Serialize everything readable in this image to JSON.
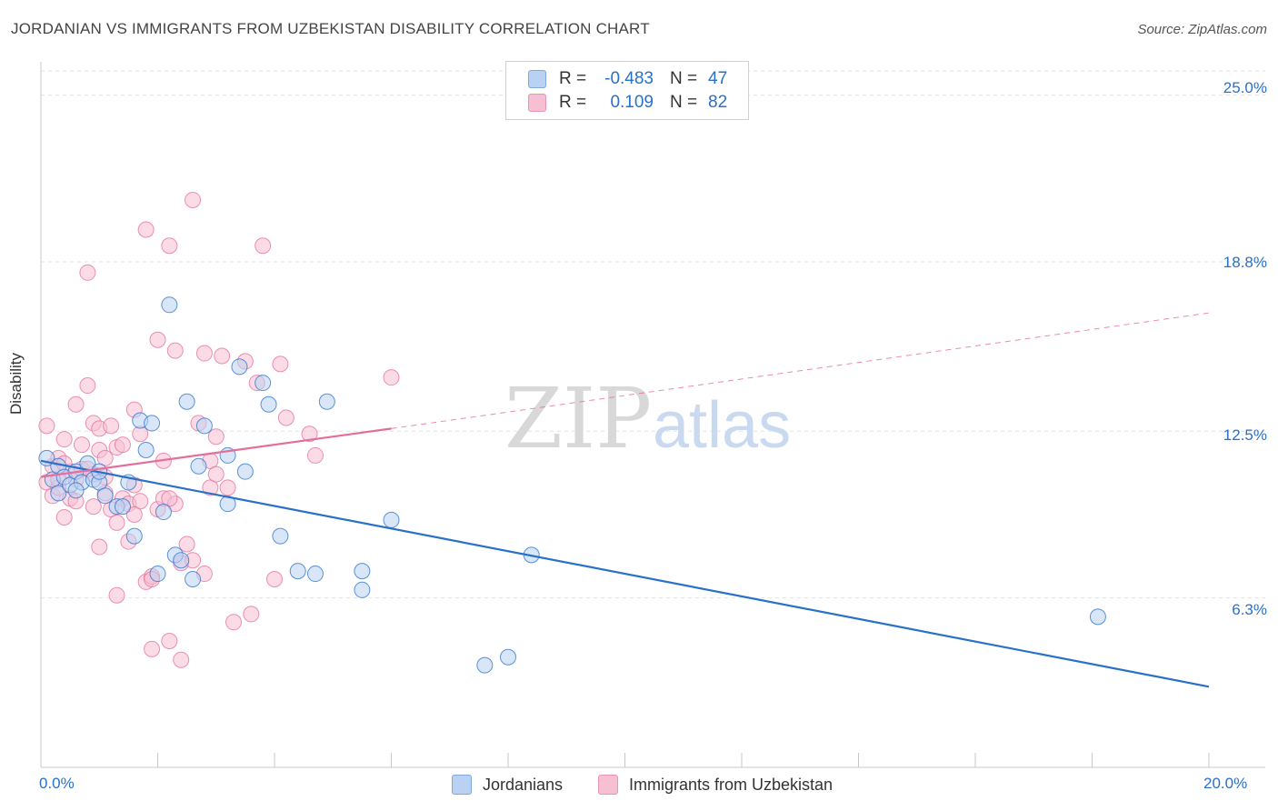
{
  "title": "JORDANIAN VS IMMIGRANTS FROM UZBEKISTAN DISABILITY CORRELATION CHART",
  "source": "Source: ZipAtlas.com",
  "watermark": {
    "zip": "ZIP",
    "atlas": "atlas"
  },
  "colors": {
    "blue": "#2970c9",
    "blue_fill": "#b9d1f2",
    "pink": "#e46e9b",
    "pink_fill": "#f7c0d2",
    "grid": "#e3e3e3"
  },
  "legend_top": {
    "rows": [
      {
        "r_label": "R =",
        "r_value": "-0.483",
        "n_label": "N =",
        "n_value": "47",
        "color": "blue"
      },
      {
        "r_label": "R =",
        "r_value": "0.109",
        "n_label": "N =",
        "n_value": "82",
        "color": "pink"
      }
    ]
  },
  "legend_bottom": {
    "items": [
      {
        "label": "Jordanians",
        "color": "blue"
      },
      {
        "label": "Immigrants from Uzbekistan",
        "color": "pink"
      }
    ]
  },
  "chart_data": {
    "type": "scatter",
    "title": "JORDANIAN VS IMMIGRANTS FROM UZBEKISTAN DISABILITY CORRELATION CHART",
    "xlabel": "",
    "ylabel": "Disability",
    "xlim": [
      0,
      20
    ],
    "ylim": [
      0,
      25.9
    ],
    "x_tick_labels": [
      {
        "value": 0,
        "label": "0.0%"
      },
      {
        "value": 20,
        "label": "20.0%"
      }
    ],
    "y_tick_labels": [
      {
        "value": 6.3,
        "label": "6.3%"
      },
      {
        "value": 12.5,
        "label": "12.5%"
      },
      {
        "value": 18.8,
        "label": "18.8%"
      },
      {
        "value": 25.0,
        "label": "25.0%"
      }
    ],
    "grid": true,
    "legend_position": "top-center",
    "series": [
      {
        "name": "Jordanians",
        "color": "blue",
        "trend": {
          "x": [
            0,
            20
          ],
          "y": [
            11.4,
            3.0
          ],
          "style": "solid"
        },
        "points": [
          [
            0.1,
            11.5
          ],
          [
            0.2,
            10.7
          ],
          [
            0.3,
            11.2
          ],
          [
            0.3,
            10.2
          ],
          [
            0.4,
            10.8
          ],
          [
            0.5,
            10.5
          ],
          [
            0.6,
            11.0
          ],
          [
            0.7,
            10.6
          ],
          [
            0.8,
            11.3
          ],
          [
            0.9,
            10.7
          ],
          [
            1.0,
            10.6
          ],
          [
            1.1,
            10.1
          ],
          [
            1.3,
            9.7
          ],
          [
            1.4,
            9.7
          ],
          [
            1.5,
            10.6
          ],
          [
            1.6,
            8.6
          ],
          [
            1.7,
            12.9
          ],
          [
            1.8,
            11.8
          ],
          [
            1.9,
            12.8
          ],
          [
            2.0,
            7.2
          ],
          [
            2.1,
            9.5
          ],
          [
            2.2,
            17.2
          ],
          [
            2.3,
            7.9
          ],
          [
            2.4,
            7.7
          ],
          [
            2.5,
            13.6
          ],
          [
            2.6,
            7.0
          ],
          [
            2.7,
            11.2
          ],
          [
            2.8,
            12.7
          ],
          [
            3.2,
            11.6
          ],
          [
            3.2,
            9.8
          ],
          [
            3.4,
            14.9
          ],
          [
            3.5,
            11.0
          ],
          [
            3.8,
            14.3
          ],
          [
            3.9,
            13.5
          ],
          [
            4.1,
            8.6
          ],
          [
            4.4,
            7.3
          ],
          [
            4.7,
            7.2
          ],
          [
            4.9,
            13.6
          ],
          [
            5.5,
            7.3
          ],
          [
            5.5,
            6.6
          ],
          [
            6.0,
            9.2
          ],
          [
            7.6,
            3.8
          ],
          [
            8.0,
            4.1
          ],
          [
            8.4,
            7.9
          ],
          [
            18.1,
            5.6
          ],
          [
            0.6,
            10.3
          ],
          [
            1.0,
            11.0
          ]
        ]
      },
      {
        "name": "Immigrants from Uzbekistan",
        "color": "pink",
        "trend": {
          "x": [
            0,
            6.0,
            20
          ],
          "y": [
            10.8,
            12.6,
            16.9
          ],
          "style": "solid-then-dashed"
        },
        "points": [
          [
            0.1,
            10.6
          ],
          [
            0.1,
            12.7
          ],
          [
            0.2,
            10.1
          ],
          [
            0.2,
            11.2
          ],
          [
            0.3,
            11.5
          ],
          [
            0.3,
            10.4
          ],
          [
            0.4,
            12.2
          ],
          [
            0.4,
            9.3
          ],
          [
            0.5,
            11.0
          ],
          [
            0.5,
            10.0
          ],
          [
            0.6,
            13.5
          ],
          [
            0.6,
            10.7
          ],
          [
            0.7,
            12.0
          ],
          [
            0.7,
            11.1
          ],
          [
            0.8,
            14.2
          ],
          [
            0.8,
            18.4
          ],
          [
            0.9,
            12.8
          ],
          [
            0.9,
            10.9
          ],
          [
            1.0,
            12.6
          ],
          [
            1.0,
            11.8
          ],
          [
            1.0,
            8.2
          ],
          [
            1.1,
            11.5
          ],
          [
            1.1,
            10.2
          ],
          [
            1.2,
            12.7
          ],
          [
            1.2,
            9.6
          ],
          [
            1.3,
            11.9
          ],
          [
            1.3,
            9.1
          ],
          [
            1.4,
            12.0
          ],
          [
            1.4,
            10.0
          ],
          [
            1.5,
            8.4
          ],
          [
            1.5,
            9.8
          ],
          [
            1.6,
            13.3
          ],
          [
            1.6,
            10.5
          ],
          [
            1.7,
            12.4
          ],
          [
            1.7,
            9.9
          ],
          [
            1.8,
            20.0
          ],
          [
            1.8,
            6.9
          ],
          [
            1.9,
            7.1
          ],
          [
            1.9,
            4.4
          ],
          [
            2.0,
            15.9
          ],
          [
            2.0,
            9.6
          ],
          [
            2.1,
            11.4
          ],
          [
            2.1,
            10.0
          ],
          [
            2.2,
            19.4
          ],
          [
            2.2,
            4.7
          ],
          [
            2.3,
            15.5
          ],
          [
            2.3,
            9.8
          ],
          [
            2.4,
            7.6
          ],
          [
            2.4,
            4.0
          ],
          [
            2.5,
            8.3
          ],
          [
            2.6,
            21.1
          ],
          [
            2.6,
            7.7
          ],
          [
            2.7,
            12.8
          ],
          [
            2.8,
            15.4
          ],
          [
            2.8,
            7.2
          ],
          [
            2.9,
            10.4
          ],
          [
            2.9,
            11.4
          ],
          [
            3.0,
            12.3
          ],
          [
            3.0,
            10.9
          ],
          [
            3.1,
            15.3
          ],
          [
            3.2,
            10.4
          ],
          [
            3.3,
            5.4
          ],
          [
            3.5,
            15.1
          ],
          [
            3.6,
            5.7
          ],
          [
            3.7,
            14.3
          ],
          [
            3.8,
            19.4
          ],
          [
            4.0,
            7.0
          ],
          [
            4.1,
            15.0
          ],
          [
            4.2,
            13.0
          ],
          [
            4.6,
            12.4
          ],
          [
            4.7,
            11.6
          ],
          [
            6.0,
            14.5
          ],
          [
            0.4,
            11.3
          ],
          [
            0.9,
            9.7
          ],
          [
            1.3,
            6.4
          ],
          [
            1.9,
            7.0
          ],
          [
            2.2,
            10.0
          ],
          [
            0.6,
            9.9
          ],
          [
            1.1,
            10.8
          ],
          [
            0.3,
            10.7
          ],
          [
            1.6,
            9.4
          ],
          [
            0.8,
            11.1
          ]
        ]
      }
    ]
  }
}
